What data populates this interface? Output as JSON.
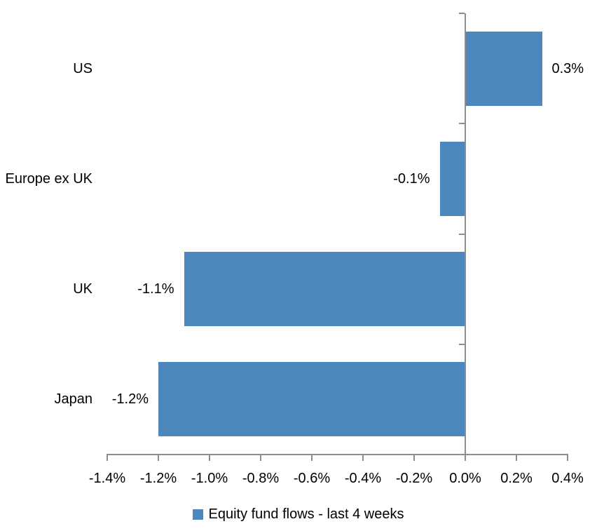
{
  "chart_data": {
    "type": "bar",
    "orientation": "horizontal",
    "title": "",
    "xlabel": "",
    "ylabel": "",
    "categories": [
      "US",
      "Europe ex UK",
      "UK",
      "Japan"
    ],
    "series": [
      {
        "name": "Equity fund flows - last 4 weeks",
        "values": [
          0.3,
          -0.1,
          -1.1,
          -1.2
        ],
        "data_labels": [
          "0.3%",
          "-0.1%",
          "-1.1%",
          "-1.2%"
        ],
        "color": "#4E87BD"
      }
    ],
    "x_axis": {
      "min": -1.4,
      "max": 0.4,
      "step": 0.2,
      "tick_labels": [
        "-1.4%",
        "-1.2%",
        "-1.0%",
        "-0.8%",
        "-0.6%",
        "-0.4%",
        "-0.2%",
        "0.0%",
        "0.2%",
        "0.4%"
      ]
    },
    "grid": false,
    "legend_position": "bottom",
    "colors": {
      "bar": "#4E87BD",
      "axis": "#8C8C8C",
      "text": "#000000",
      "background": "#FFFFFF"
    }
  }
}
